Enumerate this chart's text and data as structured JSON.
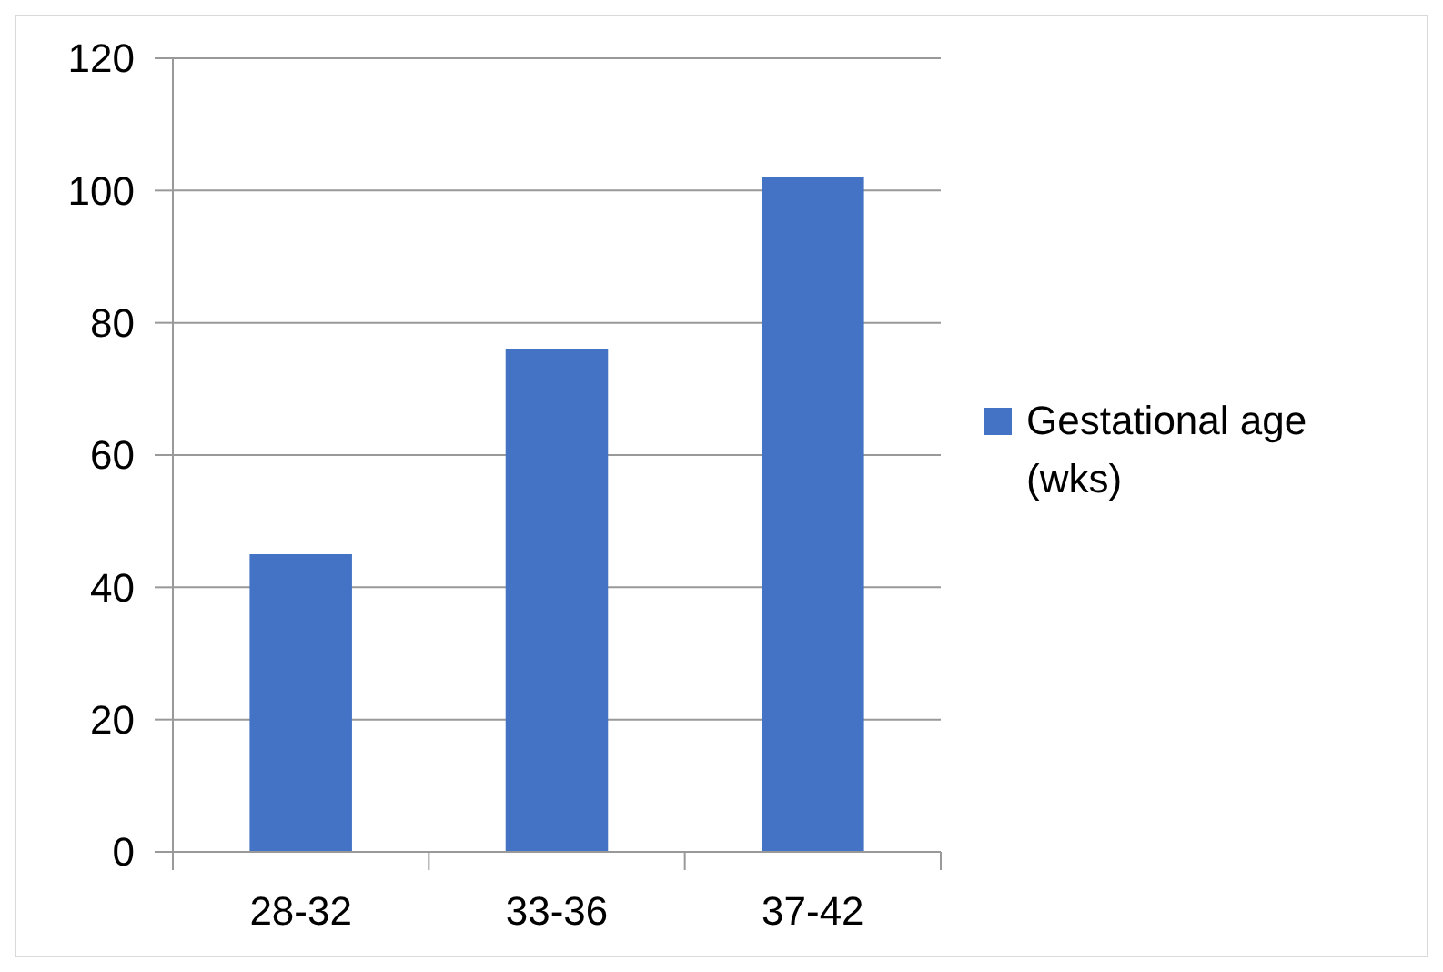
{
  "chart_data": {
    "type": "bar",
    "categories": [
      "28-32",
      "33-36",
      "37-42"
    ],
    "series": [
      {
        "name": "Gestational age (wks)",
        "color": "#4472c4",
        "values": [
          45,
          76,
          102
        ]
      }
    ],
    "ylim": [
      0,
      120
    ],
    "yticks": [
      0,
      20,
      40,
      60,
      80,
      100,
      120
    ],
    "grid": "y",
    "legend": "right"
  }
}
